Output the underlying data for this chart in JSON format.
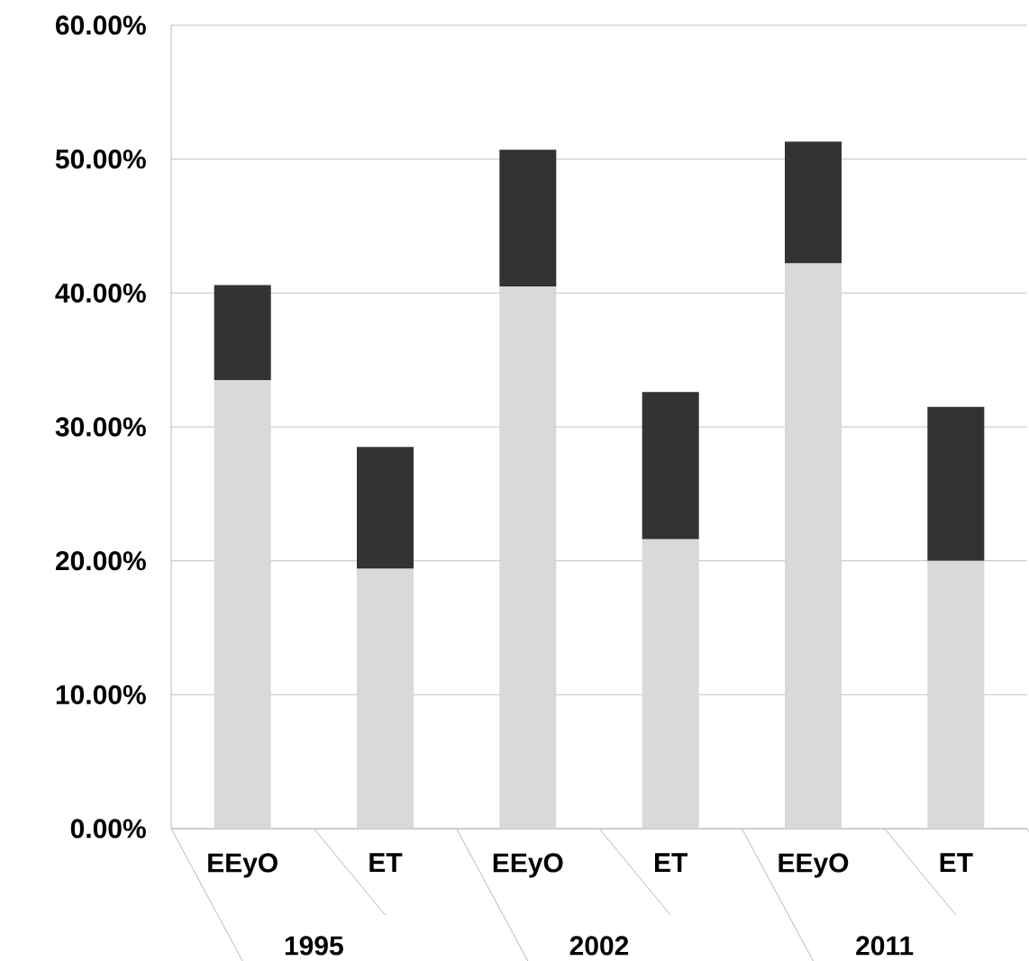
{
  "chart_data": {
    "type": "bar",
    "stacked": true,
    "categories": [
      "EEyO",
      "ET",
      "EEyO",
      "ET",
      "EEyO",
      "ET"
    ],
    "series": [
      {
        "color": "#d9d9d9",
        "values": [
          33.5,
          19.4,
          40.5,
          21.6,
          42.2,
          20.0
        ]
      },
      {
        "color": "#333333",
        "values": [
          7.1,
          9.1,
          10.2,
          11.0,
          9.1,
          11.5
        ]
      }
    ],
    "ylim": [
      0,
      60
    ],
    "yticks": [
      {
        "value": 0,
        "label": "0.00%"
      },
      {
        "value": 10,
        "label": "10.00%"
      },
      {
        "value": 20,
        "label": "20.00%"
      },
      {
        "value": 30,
        "label": "30.00%"
      },
      {
        "value": 40,
        "label": "40.00%"
      },
      {
        "value": 50,
        "label": "50.00%"
      },
      {
        "value": 60,
        "label": "60.00%"
      }
    ],
    "grid": "y",
    "annotations": [
      "1995",
      "2002",
      "2011"
    ]
  }
}
